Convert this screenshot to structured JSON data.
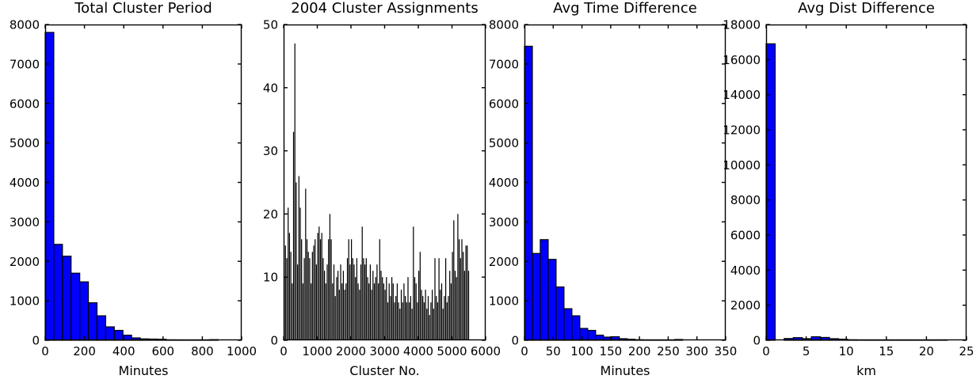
{
  "figure": {
    "background": "#ffffff",
    "text_color": "#000000",
    "bar_blue": "#0000ff",
    "bar_black": "#000000"
  },
  "chart_data": [
    {
      "type": "bar",
      "title": "Total Cluster Period",
      "xlabel": "Minutes",
      "xlim": [
        0,
        1000
      ],
      "ylim": [
        0,
        8000
      ],
      "xticks": [
        0,
        200,
        400,
        600,
        800,
        1000
      ],
      "yticks": [
        0,
        1000,
        2000,
        3000,
        4000,
        5000,
        6000,
        7000,
        8000
      ],
      "grid": false,
      "bin_start": 0,
      "bin_width": 44,
      "bar_color": "#0000ff",
      "edge_color": "#000000",
      "edge_width": 1.2,
      "values": [
        7800,
        2430,
        2130,
        1700,
        1480,
        950,
        620,
        340,
        250,
        130,
        60,
        35,
        30,
        25,
        10,
        8,
        4,
        2,
        2,
        15
      ]
    },
    {
      "type": "bar",
      "title": "2004 Cluster Assignments",
      "xlabel": "Cluster No.",
      "xlim": [
        0,
        6000
      ],
      "ylim": [
        0,
        50
      ],
      "xticks": [
        0,
        1000,
        2000,
        3000,
        4000,
        5000,
        6000
      ],
      "yticks": [
        0,
        10,
        20,
        30,
        40,
        50
      ],
      "grid": false,
      "bin_start": 0,
      "bin_width": 40,
      "bar_color": "#000000",
      "edge_color": "#000000",
      "edge_width": 0,
      "values": [
        10,
        15,
        13,
        21,
        17,
        14,
        9,
        33,
        47,
        25,
        12,
        26,
        21,
        16,
        9,
        13,
        24,
        16,
        14,
        13,
        9,
        14,
        15,
        16,
        12,
        17,
        18,
        16,
        17,
        13,
        11,
        9,
        12,
        16,
        20,
        16,
        9,
        12,
        7,
        10,
        11,
        8,
        12,
        9,
        11,
        8,
        9,
        13,
        16,
        12,
        16,
        13,
        12,
        10,
        13,
        9,
        8,
        12,
        18,
        13,
        12,
        13,
        10,
        9,
        12,
        8,
        11,
        9,
        10,
        12,
        9,
        16,
        11,
        10,
        9,
        8,
        10,
        6,
        9,
        7,
        10,
        9,
        6,
        7,
        9,
        6,
        5,
        8,
        6,
        9,
        7,
        6,
        10,
        6,
        7,
        5,
        18,
        10,
        9,
        6,
        11,
        14,
        8,
        7,
        6,
        8,
        5,
        7,
        4,
        6,
        8,
        5,
        13,
        7,
        6,
        13,
        8,
        9,
        5,
        7,
        13,
        6,
        7,
        11,
        9,
        14,
        19,
        11,
        10,
        20,
        16,
        13,
        16,
        14,
        11,
        15,
        15,
        11,
        0,
        0,
        0
      ]
    },
    {
      "type": "bar",
      "title": "Avg Time Difference",
      "xlabel": "Minutes",
      "xlim": [
        0,
        350
      ],
      "ylim": [
        0,
        8000
      ],
      "xticks": [
        0,
        50,
        100,
        150,
        200,
        250,
        300,
        350
      ],
      "yticks": [
        0,
        1000,
        2000,
        3000,
        4000,
        5000,
        6000,
        7000,
        8000
      ],
      "grid": false,
      "bin_start": 0,
      "bin_width": 13.75,
      "bar_color": "#0000ff",
      "edge_color": "#000000",
      "edge_width": 1.2,
      "values": [
        7450,
        2200,
        2550,
        2050,
        1350,
        800,
        620,
        300,
        250,
        130,
        80,
        90,
        40,
        25,
        12,
        8,
        5,
        4,
        3,
        20
      ]
    },
    {
      "type": "bar",
      "title": "Avg Dist Difference",
      "xlabel": "km",
      "xlim": [
        0,
        25
      ],
      "ylim": [
        0,
        18000
      ],
      "xticks": [
        0,
        5,
        10,
        15,
        20,
        25
      ],
      "yticks": [
        0,
        2000,
        4000,
        6000,
        8000,
        10000,
        12000,
        14000,
        16000,
        18000
      ],
      "grid": false,
      "bin_start": 0,
      "bin_width": 1.13,
      "bar_color": "#0000ff",
      "edge_color": "#000000",
      "edge_width": 1.2,
      "values": [
        16900,
        0,
        100,
        150,
        90,
        200,
        160,
        90,
        60,
        25,
        5,
        3,
        3,
        3,
        3,
        15,
        3,
        3,
        3,
        20
      ]
    }
  ]
}
